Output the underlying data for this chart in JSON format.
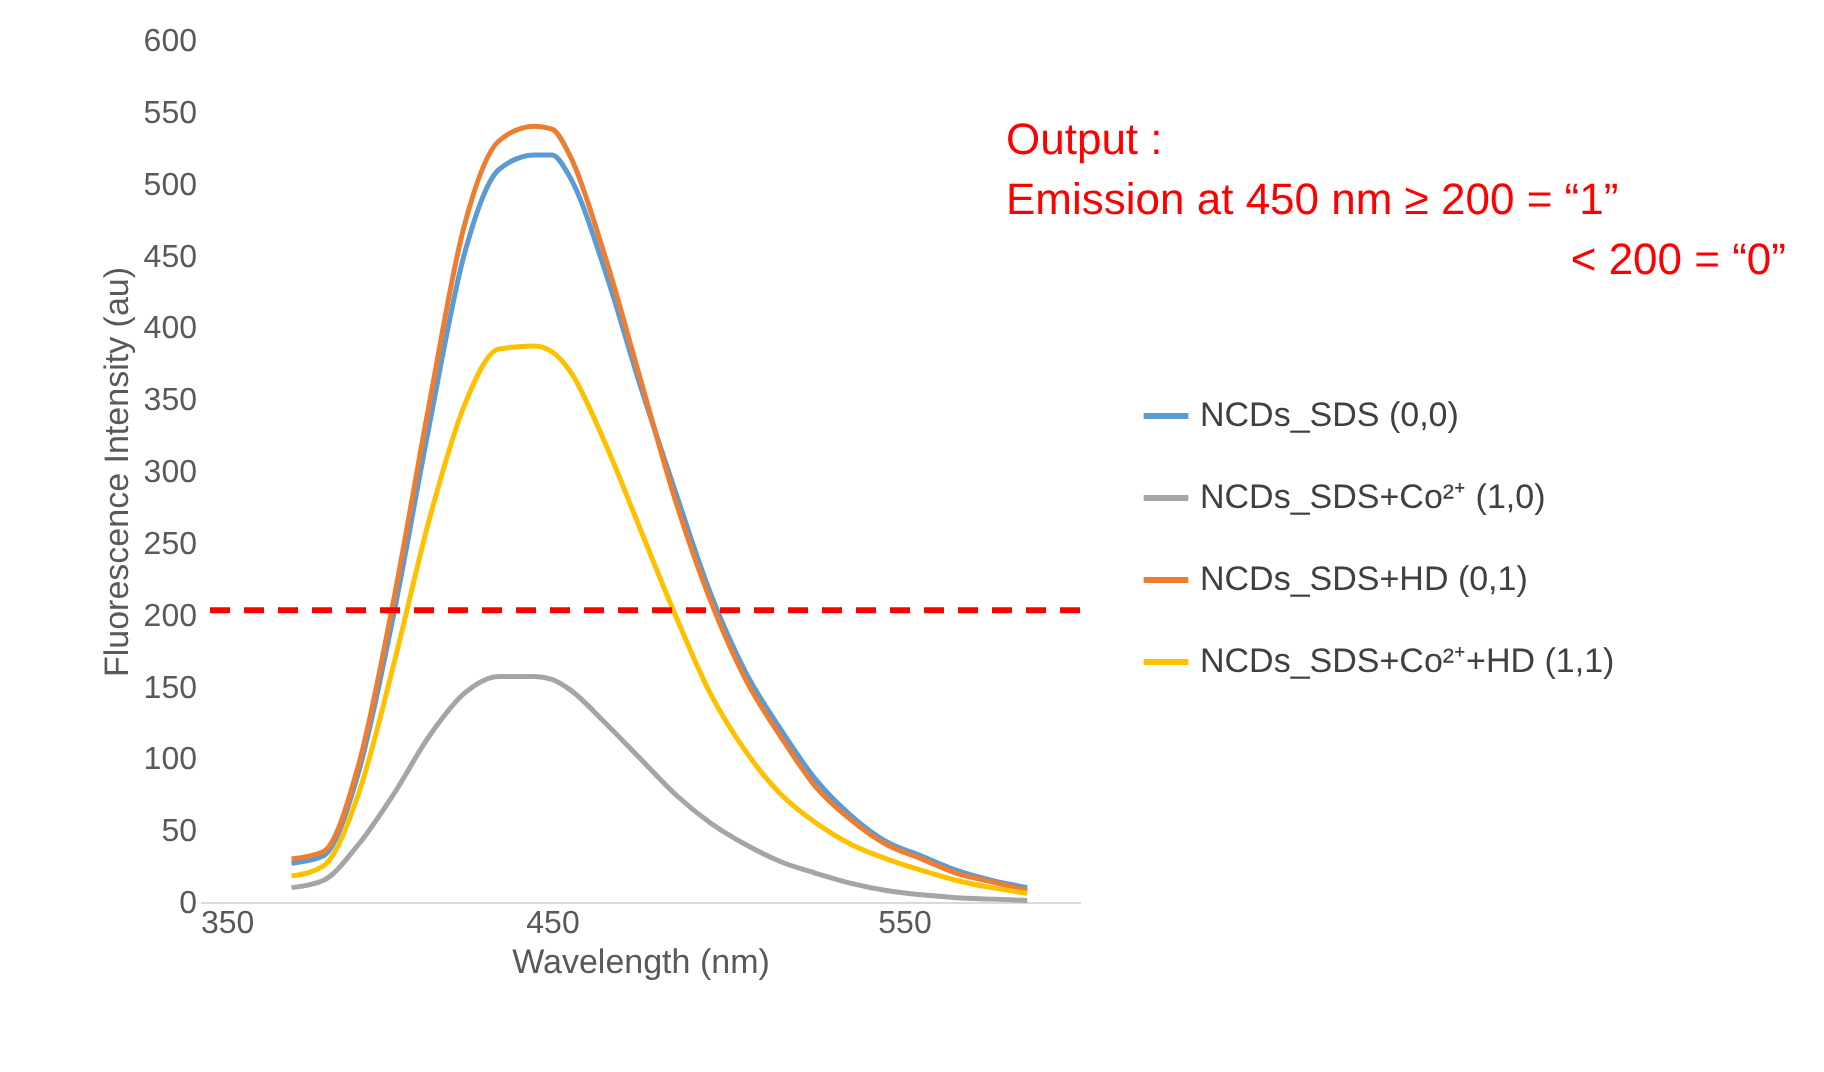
{
  "chart_data": {
    "type": "line",
    "xlabel": "Wavelength (nm)",
    "ylabel": "Fluorescence Intensity (au)",
    "xlim": [
      350,
      600
    ],
    "xticks": [
      350,
      450,
      550
    ],
    "ylim": [
      0,
      600
    ],
    "yticks": [
      0,
      50,
      100,
      150,
      200,
      250,
      300,
      350,
      400,
      450,
      500,
      550,
      600
    ],
    "x": [
      376,
      385,
      395,
      405,
      415,
      425,
      435,
      445,
      450,
      455,
      465,
      475,
      485,
      495,
      505,
      515,
      525,
      535,
      545,
      555,
      565,
      575,
      585
    ],
    "series": [
      {
        "name": "NCDs_SDS (0,0)",
        "color": "#5b9bd5",
        "values": [
          27,
          32,
          90,
          200,
          330,
          450,
          510,
          520,
          520,
          505,
          440,
          360,
          286,
          215,
          160,
          120,
          85,
          60,
          42,
          32,
          22,
          15,
          10
        ]
      },
      {
        "name": "NCDs_SDS+Co²⁺ (1,0)",
        "color": "#a5a5a5",
        "values": [
          10,
          15,
          40,
          75,
          115,
          145,
          157,
          157,
          155,
          148,
          125,
          100,
          75,
          55,
          40,
          28,
          20,
          13,
          8,
          5,
          3,
          2,
          1
        ]
      },
      {
        "name": "NCDs_SDS+HD (0,1)",
        "color": "#ed7d31",
        "values": [
          30,
          35,
          95,
          210,
          345,
          470,
          530,
          540,
          538,
          520,
          450,
          365,
          280,
          210,
          155,
          115,
          80,
          57,
          40,
          30,
          20,
          14,
          8
        ]
      },
      {
        "name": "NCDs_SDS+Co²⁺+HD (1,1)",
        "color": "#ffc000",
        "values": [
          18,
          25,
          75,
          165,
          265,
          345,
          385,
          387,
          383,
          370,
          320,
          260,
          200,
          145,
          105,
          75,
          55,
          40,
          30,
          22,
          15,
          10,
          6
        ]
      }
    ],
    "ref_lines": [
      {
        "axis": "y",
        "value": 203,
        "color": "#ff0000",
        "line_style": "dashed"
      }
    ],
    "annotations": [
      "Output :",
      "Emission at 450 nm ≥ 200 = “1”",
      "< 200 = “0”"
    ],
    "legend": "right",
    "grid": false,
    "marker": "none",
    "line_style": "solid"
  }
}
